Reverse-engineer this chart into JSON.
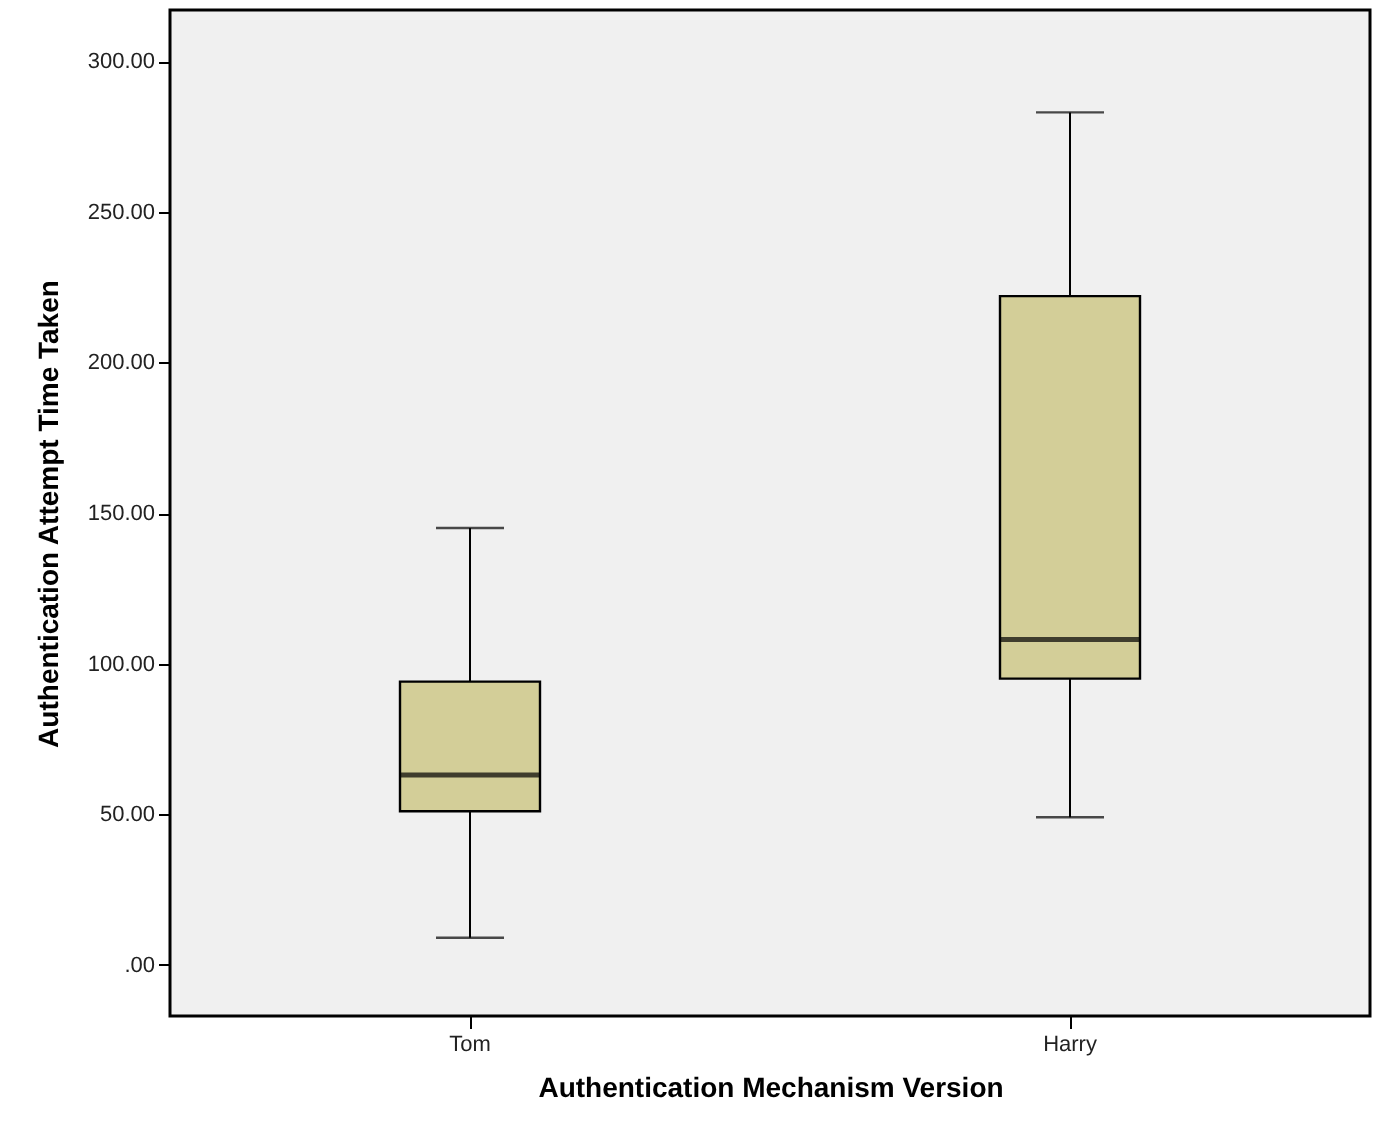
{
  "chart_data": {
    "type": "box",
    "xlabel": "Authentication Mechanism Version",
    "ylabel": "Authentication Attempt Time Taken",
    "categories": [
      "Tom",
      "Harry"
    ],
    "series": [
      {
        "color": "#d3ce98",
        "boxes": [
          {
            "low": 9,
            "q1": 51,
            "median": 63,
            "q3": 94,
            "high": 145
          },
          {
            "low": 49,
            "q1": 95,
            "median": 108,
            "q3": 222,
            "high": 283
          }
        ]
      }
    ],
    "ylim": [
      -17,
      317
    ],
    "yticks": [
      {
        "value": 0,
        "label": ".00"
      },
      {
        "value": 50,
        "label": "50.00"
      },
      {
        "value": 100,
        "label": "100.00"
      },
      {
        "value": 150,
        "label": "150.00"
      },
      {
        "value": 200,
        "label": "200.00"
      },
      {
        "value": 250,
        "label": "250.00"
      },
      {
        "value": 300,
        "label": "300.00"
      }
    ],
    "grid": false
  }
}
